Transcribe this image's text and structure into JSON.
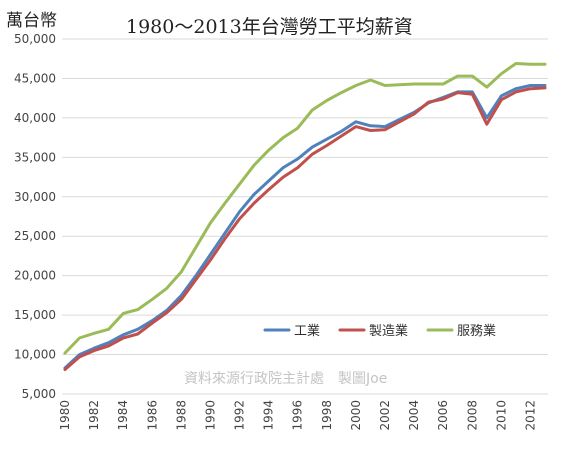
{
  "chart_data": {
    "type": "line",
    "title": "1980～2013年台灣勞工平均薪資",
    "unit_label": "萬台幣",
    "source_note": "資料來源行政院主計處　製圖Joe",
    "x": [
      1980,
      1981,
      1982,
      1983,
      1984,
      1985,
      1986,
      1987,
      1988,
      1989,
      1990,
      1991,
      1992,
      1993,
      1994,
      1995,
      1996,
      1997,
      1998,
      1999,
      2000,
      2001,
      2002,
      2003,
      2004,
      2005,
      2006,
      2007,
      2008,
      2009,
      2010,
      2011,
      2012,
      2013
    ],
    "x_tick_labels": [
      "1980",
      "1982",
      "1984",
      "1986",
      "1988",
      "1990",
      "1992",
      "1994",
      "1996",
      "1998",
      "2000",
      "2002",
      "2004",
      "2006",
      "2008",
      "2010",
      "2012"
    ],
    "y_tick_labels": [
      "5,000",
      "10,000",
      "15,000",
      "20,000",
      "25,000",
      "30,000",
      "35,000",
      "40,000",
      "45,000",
      "50,000"
    ],
    "ylim": [
      5000,
      50000
    ],
    "grid": true,
    "legend_position": "inside-lower-right",
    "series": [
      {
        "name": "工業",
        "color": "#4f81bd",
        "values": [
          8300,
          10000,
          10800,
          11500,
          12500,
          13200,
          14300,
          15600,
          17500,
          20000,
          22700,
          25400,
          28100,
          30300,
          32000,
          33700,
          34800,
          36300,
          37300,
          38300,
          39500,
          39000,
          38900,
          39800,
          40700,
          41900,
          42600,
          43300,
          43300,
          40000,
          42800,
          43700,
          44100,
          44100
        ]
      },
      {
        "name": "製造業",
        "color": "#c0504d",
        "values": [
          8100,
          9700,
          10500,
          11100,
          12100,
          12600,
          14000,
          15300,
          17000,
          19500,
          22000,
          24700,
          27200,
          29200,
          30900,
          32500,
          33700,
          35400,
          36500,
          37700,
          38900,
          38400,
          38500,
          39500,
          40500,
          42000,
          42400,
          43200,
          43000,
          39200,
          42300,
          43300,
          43700,
          43800
        ]
      },
      {
        "name": "服務業",
        "color": "#9bbb59",
        "values": [
          10200,
          12100,
          12700,
          13200,
          15200,
          15700,
          17000,
          18400,
          20500,
          23600,
          26700,
          29200,
          31600,
          34000,
          35900,
          37500,
          38700,
          41000,
          42200,
          43200,
          44100,
          44800,
          44100,
          44200,
          44300,
          44300,
          44300,
          45300,
          45300,
          43900,
          45600,
          46900,
          46800,
          46800
        ]
      }
    ]
  }
}
